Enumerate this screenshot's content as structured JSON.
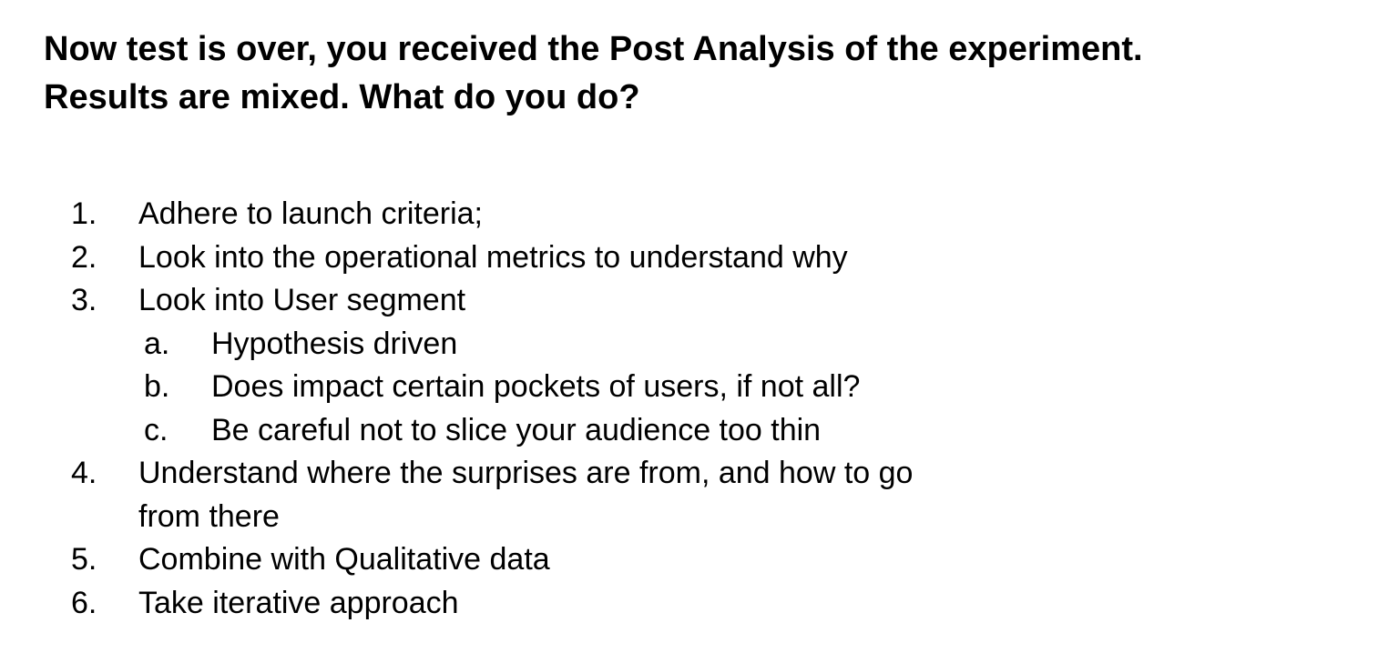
{
  "title": {
    "line1": "Now test is over, you received the Post Analysis of the experiment.",
    "line2": "Results are mixed. What do you do?"
  },
  "items": [
    {
      "marker": "1.",
      "text": "Adhere to launch criteria;"
    },
    {
      "marker": "2.",
      "text": "Look into the operational metrics to understand why"
    },
    {
      "marker": "3.",
      "text": "Look into User segment"
    },
    {
      "marker": "a.",
      "text": "Hypothesis driven"
    },
    {
      "marker": "b.",
      "text": "Does impact certain pockets of users, if not all?"
    },
    {
      "marker": "c.",
      "text": "Be careful not to slice your audience too thin"
    },
    {
      "marker": "4.",
      "text_line1": "Understand where the surprises are from, and how to go",
      "text_line2": "from there"
    },
    {
      "marker": "5.",
      "text": "Combine with Qualitative data"
    },
    {
      "marker": "6.",
      "text": "Take iterative approach"
    }
  ]
}
